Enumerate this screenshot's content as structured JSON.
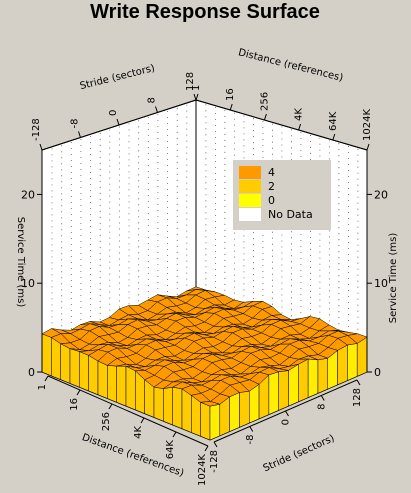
{
  "chart_data": {
    "type": "surface",
    "title": "Write Response Surface",
    "z_label": "Service Time (ms)",
    "z_ticks": [
      0,
      10,
      20
    ],
    "zlim": [
      0,
      25
    ],
    "stride_label": "Stride (sectors)",
    "stride_ticks": [
      "-128",
      "-8",
      "0",
      "8",
      "128"
    ],
    "distance_label": "Distance (references)",
    "distance_ticks": [
      "1",
      "16",
      "256",
      "4K",
      "64K",
      "1024K"
    ],
    "distance_ticks_front": [
      "1",
      "16",
      "256",
      "4K",
      "64K",
      "1024K"
    ],
    "stride_ticks_front": [
      "-128",
      "-8",
      "0",
      "8",
      "128"
    ],
    "legend": [
      {
        "label": "4",
        "color": "#ff9900"
      },
      {
        "label": "2",
        "color": "#ffcc00"
      },
      {
        "label": "0",
        "color": "#ffff00"
      },
      {
        "label": "No Data",
        "color": "#ffffff"
      }
    ],
    "surface_level_ms": 4,
    "surface_range_ms": [
      3,
      5
    ],
    "grid": true
  }
}
